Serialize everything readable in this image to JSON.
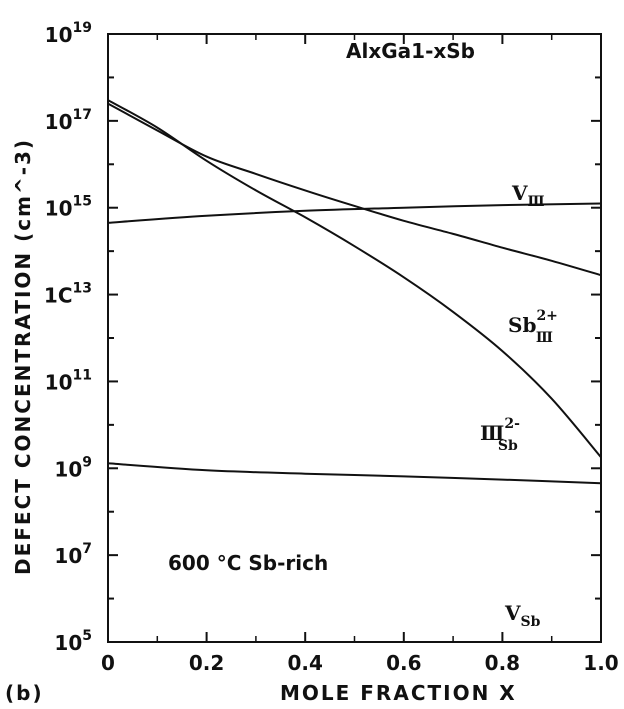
{
  "chart_data": {
    "type": "line",
    "panel_label": "(b)",
    "title": "AlxGa1-xSb",
    "xlabel": "MOLE FRACTION X",
    "ylabel": "DEFECT CONCENTRATION (cm^-3)",
    "xlim": [
      0,
      1.0
    ],
    "ylim": [
      100000.0,
      1e+19
    ],
    "yscale": "log",
    "x_ticks": [
      {
        "value": 0,
        "label": "0"
      },
      {
        "value": 0.2,
        "label": "0.2"
      },
      {
        "value": 0.4,
        "label": "0.4"
      },
      {
        "value": 0.6,
        "label": "0.6"
      },
      {
        "value": 0.8,
        "label": "0.8"
      },
      {
        "value": 1.0,
        "label": "1.0"
      }
    ],
    "y_ticks": [
      {
        "value": 100000.0,
        "base": "10",
        "exp": "5"
      },
      {
        "value": 10000000.0,
        "base": "10",
        "exp": "7"
      },
      {
        "value": 1000000000.0,
        "base": "10",
        "exp": "9"
      },
      {
        "value": 100000000000.0,
        "base": "10",
        "exp": "11"
      },
      {
        "value": 10000000000000.0,
        "base": "1C",
        "exp": "13"
      },
      {
        "value": 1000000000000000.0,
        "base": "10",
        "exp": "15"
      },
      {
        "value": 1e+17,
        "base": "10",
        "exp": "17"
      },
      {
        "value": 1e+19,
        "base": "10",
        "exp": "19"
      }
    ],
    "annotation": "600 °C  Sb-rich",
    "series": [
      {
        "name": "V_III",
        "label_main": "V",
        "label_sub": "Ⅲ",
        "label_sup": "",
        "x": [
          0,
          0.2,
          0.4,
          0.6,
          0.8,
          1.0
        ],
        "y": [
          450000000000000.0,
          650000000000000.0,
          850000000000000.0,
          1000000000000000.0,
          1150000000000000.0,
          1250000000000000.0
        ]
      },
      {
        "name": "Sb_III 2+",
        "label_main": "Sb",
        "label_sub": "Ⅲ",
        "label_sup": "2+",
        "x": [
          0,
          0.1,
          0.2,
          0.3,
          0.4,
          0.5,
          0.6,
          0.7,
          0.8,
          0.9,
          1.0
        ],
        "y": [
          2.5e+17,
          6e+16,
          1.5e+16,
          6000000000000000.0,
          2500000000000000.0,
          1100000000000000.0,
          500000000000000.0,
          250000000000000.0,
          120000000000000.0,
          60000000000000.0,
          28000000000000.0
        ]
      },
      {
        "name": "III_Sb 2-",
        "label_main": "Ⅲ",
        "label_sub": "Sb",
        "label_sup": "2-",
        "x": [
          0,
          0.1,
          0.2,
          0.3,
          0.4,
          0.5,
          0.6,
          0.7,
          0.8,
          0.9,
          1.0
        ],
        "y": [
          3e+17,
          7e+16,
          1.2e+16,
          2500000000000000.0,
          600000000000000.0,
          130000000000000.0,
          25000000000000.0,
          4000000000000.0,
          500000000000.0,
          40000000000.0,
          1800000000.0
        ]
      },
      {
        "name": "V_Sb",
        "label_main": "V",
        "label_sub": "Sb",
        "label_sup": "",
        "x": [
          0,
          0.2,
          0.4,
          0.6,
          0.8,
          1.0
        ],
        "y": [
          1300000000.0,
          900000000.0,
          750000000.0,
          650000000.0,
          550000000.0,
          450000000.0
        ]
      }
    ],
    "grid": false,
    "legend": "none"
  }
}
